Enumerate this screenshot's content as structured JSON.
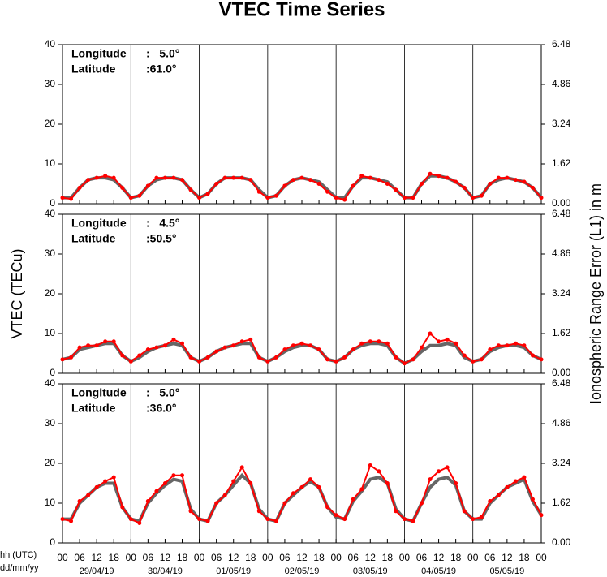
{
  "title": "VTEC Time Series",
  "ylabel": "VTEC (TECu)",
  "y2label": "Ionospheric Range Error (L1) in m",
  "chart_data": [
    {
      "type": "line",
      "annotations": [
        {
          "label": "Longitude",
          "value": ":   5.0°"
        },
        {
          "label": "Latitude",
          "value": ":61.0°"
        }
      ],
      "x": [
        0,
        3,
        6,
        9,
        12,
        15,
        18,
        21,
        24,
        27,
        30,
        33,
        36,
        39,
        42,
        45,
        48,
        51,
        54,
        57,
        60,
        63,
        66,
        69,
        72,
        75,
        78,
        81,
        84,
        87,
        90,
        93,
        96,
        99,
        102,
        105,
        108,
        111,
        114,
        117,
        120,
        123,
        126,
        129,
        132,
        135,
        138,
        141,
        144,
        147,
        150,
        153,
        156,
        159,
        162,
        165,
        168
      ],
      "xlim": [
        0,
        168
      ],
      "ylim": [
        0,
        40
      ],
      "yticks": [
        0,
        10,
        20,
        30,
        40
      ],
      "y2lim": [
        0,
        6.48
      ],
      "y2ticks": [
        {
          "value": 0,
          "label": "0.00"
        },
        {
          "value": 1.62,
          "label": "1.62"
        },
        {
          "value": 3.24,
          "label": "3.24"
        },
        {
          "value": 4.86,
          "label": "4.86"
        },
        {
          "value": 6.48,
          "label": "6.48"
        }
      ],
      "series": [
        {
          "color": "#666666",
          "values": [
            1.5,
            1.5,
            4,
            6,
            6.5,
            6.5,
            6,
            4,
            1.5,
            2,
            4.5,
            6,
            6.5,
            6.5,
            6,
            3.5,
            1.5,
            2.5,
            5,
            6.5,
            6.5,
            6.5,
            6,
            3.5,
            1.5,
            2,
            4.5,
            6,
            6.5,
            6,
            5.5,
            3.5,
            1.5,
            1.5,
            4.5,
            6.5,
            6.5,
            6,
            5.5,
            3.5,
            1.5,
            1.5,
            5,
            7,
            7,
            6.5,
            5.5,
            4,
            1.5,
            2,
            5,
            6,
            6.5,
            6,
            5.5,
            4,
            1.5
          ]
        },
        {
          "color": "#ff0000",
          "values": [
            1.5,
            1.2,
            4,
            6,
            6.5,
            7,
            6.5,
            4,
            1.5,
            2,
            4.5,
            6.5,
            6.5,
            6.5,
            6,
            3.5,
            1.5,
            2.5,
            5,
            6.5,
            6.5,
            6.5,
            6,
            3,
            1.5,
            2,
            4.5,
            6,
            6.5,
            6,
            5,
            3,
            1.5,
            1,
            4.5,
            7,
            6.5,
            6,
            5,
            3.5,
            1.5,
            1.5,
            5,
            7.5,
            7,
            6.5,
            5.5,
            4,
            1.5,
            2,
            5,
            6.5,
            6.5,
            6,
            5.5,
            4,
            1.5
          ]
        }
      ]
    },
    {
      "type": "line",
      "annotations": [
        {
          "label": "Longitude",
          "value": ":   4.5°"
        },
        {
          "label": "Latitude",
          "value": ":50.5°"
        }
      ],
      "x": [
        0,
        3,
        6,
        9,
        12,
        15,
        18,
        21,
        24,
        27,
        30,
        33,
        36,
        39,
        42,
        45,
        48,
        51,
        54,
        57,
        60,
        63,
        66,
        69,
        72,
        75,
        78,
        81,
        84,
        87,
        90,
        93,
        96,
        99,
        102,
        105,
        108,
        111,
        114,
        117,
        120,
        123,
        126,
        129,
        132,
        135,
        138,
        141,
        144,
        147,
        150,
        153,
        156,
        159,
        162,
        165,
        168
      ],
      "xlim": [
        0,
        168
      ],
      "ylim": [
        0,
        40
      ],
      "yticks": [
        0,
        10,
        20,
        30,
        40
      ],
      "y2lim": [
        0,
        6.48
      ],
      "y2ticks": [
        {
          "value": 0,
          "label": "0.00"
        },
        {
          "value": 1.62,
          "label": "1.62"
        },
        {
          "value": 3.24,
          "label": "3.24"
        },
        {
          "value": 4.86,
          "label": "4.86"
        },
        {
          "value": 6.48,
          "label": "6.48"
        }
      ],
      "series": [
        {
          "color": "#666666",
          "values": [
            3.5,
            4,
            6,
            6.5,
            7,
            7.5,
            7.5,
            4.5,
            3,
            4,
            5.5,
            6.5,
            7,
            7.5,
            7,
            4,
            3,
            4,
            5.5,
            6.5,
            7,
            7.5,
            7.5,
            4,
            3,
            4,
            5.5,
            6.5,
            7,
            7,
            6,
            3.5,
            3,
            4,
            6,
            7,
            7.5,
            7.5,
            7,
            4,
            2.5,
            3.5,
            5.5,
            7,
            7,
            7.5,
            7,
            4,
            3,
            3.5,
            5.5,
            6.5,
            7,
            7,
            6.5,
            4.5,
            3.5
          ]
        },
        {
          "color": "#ff0000",
          "values": [
            3.5,
            4,
            6.5,
            7,
            7,
            8,
            8,
            4.5,
            3,
            4.5,
            6,
            6.5,
            7,
            8.5,
            7.5,
            4,
            3,
            4,
            5.5,
            6.5,
            7,
            8,
            8.5,
            4,
            3,
            4,
            6,
            7,
            7.5,
            7,
            6,
            3.5,
            3,
            4,
            6,
            7.5,
            8,
            8,
            7.5,
            4,
            2.5,
            3.5,
            6.5,
            10,
            8,
            8.5,
            7.5,
            4.5,
            3,
            3.5,
            6,
            7,
            7,
            7.5,
            7,
            4.5,
            3.5
          ]
        }
      ]
    },
    {
      "type": "line",
      "annotations": [
        {
          "label": "Longitude",
          "value": ":   5.0°"
        },
        {
          "label": "Latitude",
          "value": ":36.0°"
        }
      ],
      "x": [
        0,
        3,
        6,
        9,
        12,
        15,
        18,
        21,
        24,
        27,
        30,
        33,
        36,
        39,
        42,
        45,
        48,
        51,
        54,
        57,
        60,
        63,
        66,
        69,
        72,
        75,
        78,
        81,
        84,
        87,
        90,
        93,
        96,
        99,
        102,
        105,
        108,
        111,
        114,
        117,
        120,
        123,
        126,
        129,
        132,
        135,
        138,
        141,
        144,
        147,
        150,
        153,
        156,
        159,
        162,
        165,
        168
      ],
      "xlim": [
        0,
        168
      ],
      "ylim": [
        0,
        40
      ],
      "yticks": [
        0,
        10,
        20,
        30,
        40
      ],
      "y2lim": [
        0,
        6.48
      ],
      "y2ticks": [
        {
          "value": 0,
          "label": "0.00"
        },
        {
          "value": 1.62,
          "label": "1.62"
        },
        {
          "value": 3.24,
          "label": "3.24"
        },
        {
          "value": 4.86,
          "label": "4.86"
        },
        {
          "value": 6.48,
          "label": "6.48"
        }
      ],
      "xlabel": "hh (UTC)",
      "xlabel2": "dd/mm/yy",
      "xticks": [
        {
          "value": 0,
          "label": "00"
        },
        {
          "value": 6,
          "label": "06"
        },
        {
          "value": 12,
          "label": "12"
        },
        {
          "value": 18,
          "label": "18"
        },
        {
          "value": 24,
          "label": "00"
        },
        {
          "value": 30,
          "label": "06"
        },
        {
          "value": 36,
          "label": "12"
        },
        {
          "value": 42,
          "label": "18"
        },
        {
          "value": 48,
          "label": "00"
        },
        {
          "value": 54,
          "label": "06"
        },
        {
          "value": 60,
          "label": "12"
        },
        {
          "value": 66,
          "label": "18"
        },
        {
          "value": 72,
          "label": "00"
        },
        {
          "value": 78,
          "label": "06"
        },
        {
          "value": 84,
          "label": "12"
        },
        {
          "value": 90,
          "label": "18"
        },
        {
          "value": 96,
          "label": "00"
        },
        {
          "value": 102,
          "label": "06"
        },
        {
          "value": 108,
          "label": "12"
        },
        {
          "value": 114,
          "label": "18"
        },
        {
          "value": 120,
          "label": "00"
        },
        {
          "value": 126,
          "label": "06"
        },
        {
          "value": 132,
          "label": "12"
        },
        {
          "value": 138,
          "label": "18"
        },
        {
          "value": 144,
          "label": "00"
        },
        {
          "value": 150,
          "label": "06"
        },
        {
          "value": 156,
          "label": "12"
        },
        {
          "value": 162,
          "label": "18"
        },
        {
          "value": 168,
          "label": "00"
        }
      ],
      "date_ticks": [
        {
          "value": 12,
          "label": "29/04/19"
        },
        {
          "value": 36,
          "label": "30/04/19"
        },
        {
          "value": 60,
          "label": "01/05/19"
        },
        {
          "value": 84,
          "label": "02/05/19"
        },
        {
          "value": 108,
          "label": "03/05/19"
        },
        {
          "value": 132,
          "label": "04/05/19"
        },
        {
          "value": 156,
          "label": "05/05/19"
        }
      ],
      "series": [
        {
          "color": "#666666",
          "values": [
            6,
            6,
            10,
            12,
            14,
            15,
            15,
            9,
            6,
            5.5,
            10,
            12.5,
            14.5,
            16,
            15.5,
            8.5,
            6,
            5.5,
            10,
            12,
            14.5,
            17,
            15,
            8.5,
            6,
            5.5,
            10,
            12,
            14,
            15.5,
            14,
            9,
            6.5,
            6,
            10.5,
            13,
            16,
            16.5,
            15,
            8.5,
            6,
            5.5,
            10,
            14,
            16,
            16.5,
            14.5,
            8,
            6,
            6,
            10,
            12,
            14,
            15,
            16,
            10.5,
            7
          ]
        },
        {
          "color": "#ff0000",
          "values": [
            6,
            5.5,
            10.5,
            12,
            14,
            15.5,
            16.5,
            9,
            6,
            5,
            10.5,
            13,
            15,
            17,
            17,
            8,
            6,
            5.5,
            10,
            12,
            15.5,
            19,
            15,
            8,
            6,
            5.5,
            10,
            12.5,
            14,
            16,
            14,
            9,
            7,
            6,
            11,
            13.5,
            19.5,
            18,
            15,
            8,
            6,
            5.5,
            10,
            16,
            18,
            19,
            15,
            8,
            6,
            6.5,
            10.5,
            12,
            14,
            15.5,
            16.5,
            11,
            7
          ]
        }
      ]
    }
  ]
}
